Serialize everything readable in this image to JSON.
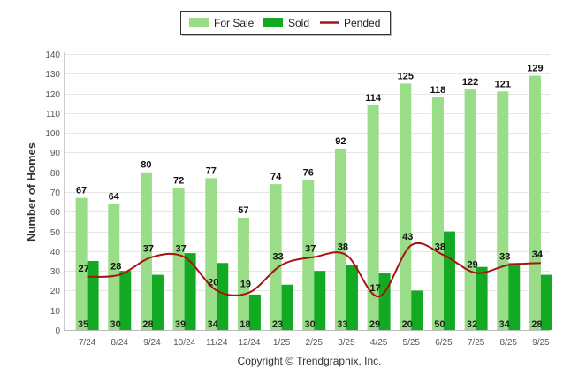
{
  "chart_data": {
    "type": "bar",
    "title": "",
    "xlabel": "",
    "ylabel": "Number of Homes",
    "ylim": [
      0,
      140
    ],
    "yticks": [
      0,
      10,
      20,
      30,
      40,
      50,
      60,
      70,
      80,
      90,
      100,
      110,
      120,
      130,
      140
    ],
    "grid": true,
    "legend_position": "top-center",
    "categories": [
      "7/24",
      "8/24",
      "9/24",
      "10/24",
      "11/24",
      "12/24",
      "1/25",
      "2/25",
      "3/25",
      "4/25",
      "5/25",
      "6/25",
      "7/25",
      "8/25",
      "9/25"
    ],
    "series": [
      {
        "name": "For Sale",
        "kind": "bar",
        "color": "#99dd88",
        "values": [
          67,
          64,
          80,
          72,
          77,
          57,
          74,
          76,
          92,
          114,
          125,
          118,
          122,
          121,
          129
        ]
      },
      {
        "name": "Sold",
        "kind": "bar",
        "color": "#11aa22",
        "values": [
          35,
          30,
          28,
          39,
          34,
          18,
          23,
          30,
          33,
          29,
          20,
          50,
          32,
          34,
          28
        ]
      },
      {
        "name": "Pended",
        "kind": "line",
        "color": "#aa1111",
        "values": [
          27,
          28,
          37,
          37,
          20,
          19,
          33,
          37,
          38,
          17,
          43,
          38,
          29,
          33,
          34
        ]
      }
    ],
    "footer": "Copyright © Trendgraphix, Inc."
  }
}
